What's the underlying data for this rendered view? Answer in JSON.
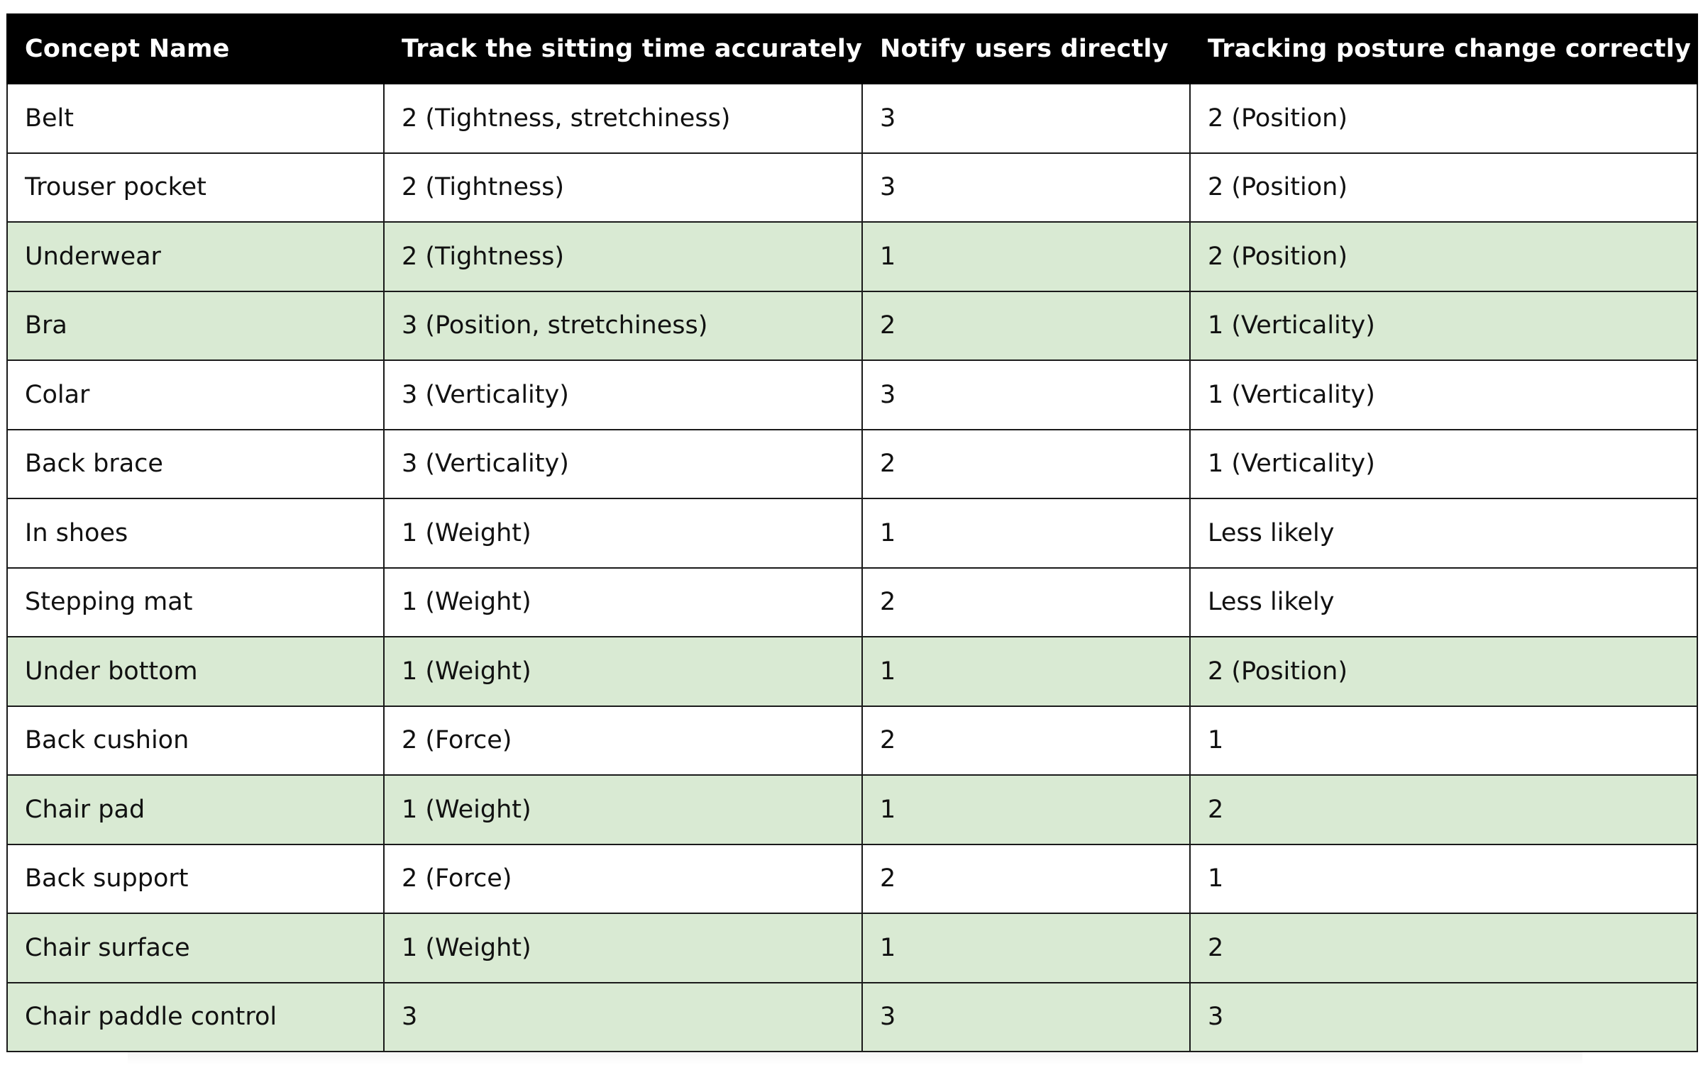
{
  "table": {
    "headers": [
      "Concept Name",
      "Track the sitting time accurately",
      "Notify users directly",
      "Tracking posture change correctly"
    ],
    "highlight_color": "#d9ead3",
    "header_color": "#000000",
    "rows": [
      {
        "cells": [
          "Belt",
          "2 (Tightness, stretchiness)",
          "3",
          "2 (Position)"
        ],
        "highlight": false
      },
      {
        "cells": [
          "Trouser pocket",
          "2 (Tightness)",
          "3",
          "2 (Position)"
        ],
        "highlight": false
      },
      {
        "cells": [
          "Underwear",
          "2 (Tightness)",
          "1",
          "2 (Position)"
        ],
        "highlight": true
      },
      {
        "cells": [
          "Bra",
          "3 (Position, stretchiness)",
          "2",
          "1 (Verticality)"
        ],
        "highlight": true
      },
      {
        "cells": [
          "Colar",
          "3 (Verticality)",
          "3",
          "1 (Verticality)"
        ],
        "highlight": false
      },
      {
        "cells": [
          "Back brace",
          "3 (Verticality)",
          "2",
          "1 (Verticality)"
        ],
        "highlight": false
      },
      {
        "cells": [
          "In shoes",
          "1 (Weight)",
          "1",
          "Less likely"
        ],
        "highlight": false
      },
      {
        "cells": [
          "Stepping mat",
          "1 (Weight)",
          "2",
          "Less likely"
        ],
        "highlight": false
      },
      {
        "cells": [
          "Under bottom",
          "1 (Weight)",
          "1",
          "2 (Position)"
        ],
        "highlight": true
      },
      {
        "cells": [
          "Back cushion",
          "2 (Force)",
          "2",
          "1"
        ],
        "highlight": false
      },
      {
        "cells": [
          "Chair pad",
          "1 (Weight)",
          "1",
          "2"
        ],
        "highlight": true
      },
      {
        "cells": [
          "Back support",
          "2 (Force)",
          "2",
          "1"
        ],
        "highlight": false
      },
      {
        "cells": [
          "Chair surface",
          "1 (Weight)",
          "1",
          "2"
        ],
        "highlight": true
      },
      {
        "cells": [
          "Chair paddle control",
          "3",
          "3",
          "3"
        ],
        "highlight": true
      }
    ]
  }
}
